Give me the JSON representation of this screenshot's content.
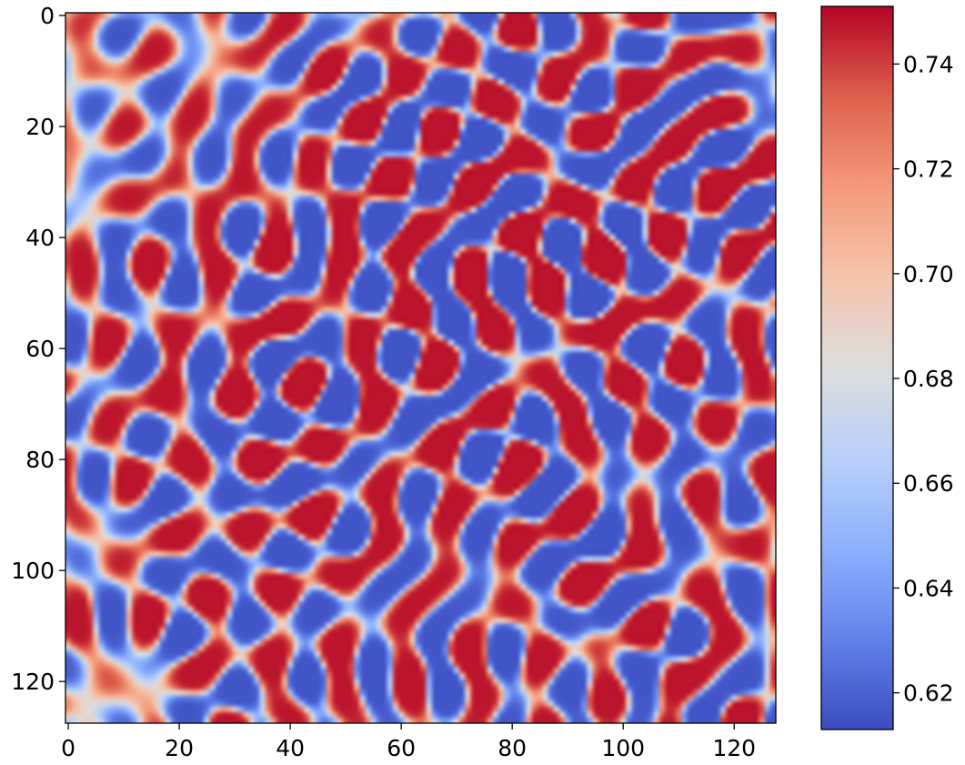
{
  "chart_data": {
    "type": "heatmap",
    "title": "",
    "xlabel": "",
    "ylabel": "",
    "grid_shape": [
      128,
      128
    ],
    "xlim": [
      0,
      127
    ],
    "ylim": [
      127,
      0
    ],
    "x_ticks": [
      "0",
      "20",
      "40",
      "60",
      "80",
      "100",
      "120"
    ],
    "y_ticks": [
      "0",
      "20",
      "40",
      "60",
      "80",
      "100",
      "120"
    ],
    "colormap": "coolwarm",
    "colorbar": {
      "vmin": 0.613,
      "vmax": 0.751,
      "ticks": [
        "0.62",
        "0.64",
        "0.66",
        "0.68",
        "0.70",
        "0.72",
        "0.74"
      ]
    },
    "grid": false,
    "pattern": "Turing-style spot/labyrinth pattern: dense red spots (about 0.72–0.75) separated by blue channels (about 0.62–0.66), with background near 0.68"
  }
}
